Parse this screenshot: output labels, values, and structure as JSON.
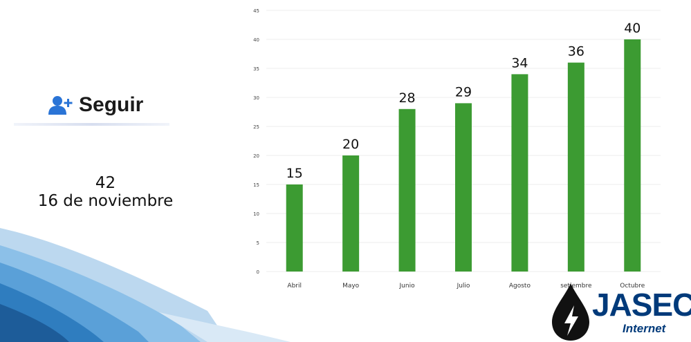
{
  "follow": {
    "label": "Seguir",
    "icon": "user-plus-icon",
    "color": "#2a74d6"
  },
  "count": {
    "value": "42",
    "date": "16 de noviembre"
  },
  "chart_data": {
    "type": "bar",
    "categories": [
      "Abril",
      "Mayo",
      "Junio",
      "Julio",
      "Agosto",
      "setiembre",
      "Octubre"
    ],
    "values": [
      15,
      20,
      28,
      29,
      34,
      36,
      40
    ],
    "ylim": [
      0,
      45
    ],
    "yticks": [
      0,
      5,
      10,
      15,
      20,
      25,
      30,
      35,
      40,
      45
    ],
    "title": "",
    "xlabel": "",
    "ylabel": "",
    "grid": true,
    "bar_color": "#3c9b32",
    "data_labels": true
  },
  "brand": {
    "name": "JASEC",
    "sub": "Internet",
    "icon": "water-drop-lightning-icon",
    "color": "#003a7a"
  }
}
